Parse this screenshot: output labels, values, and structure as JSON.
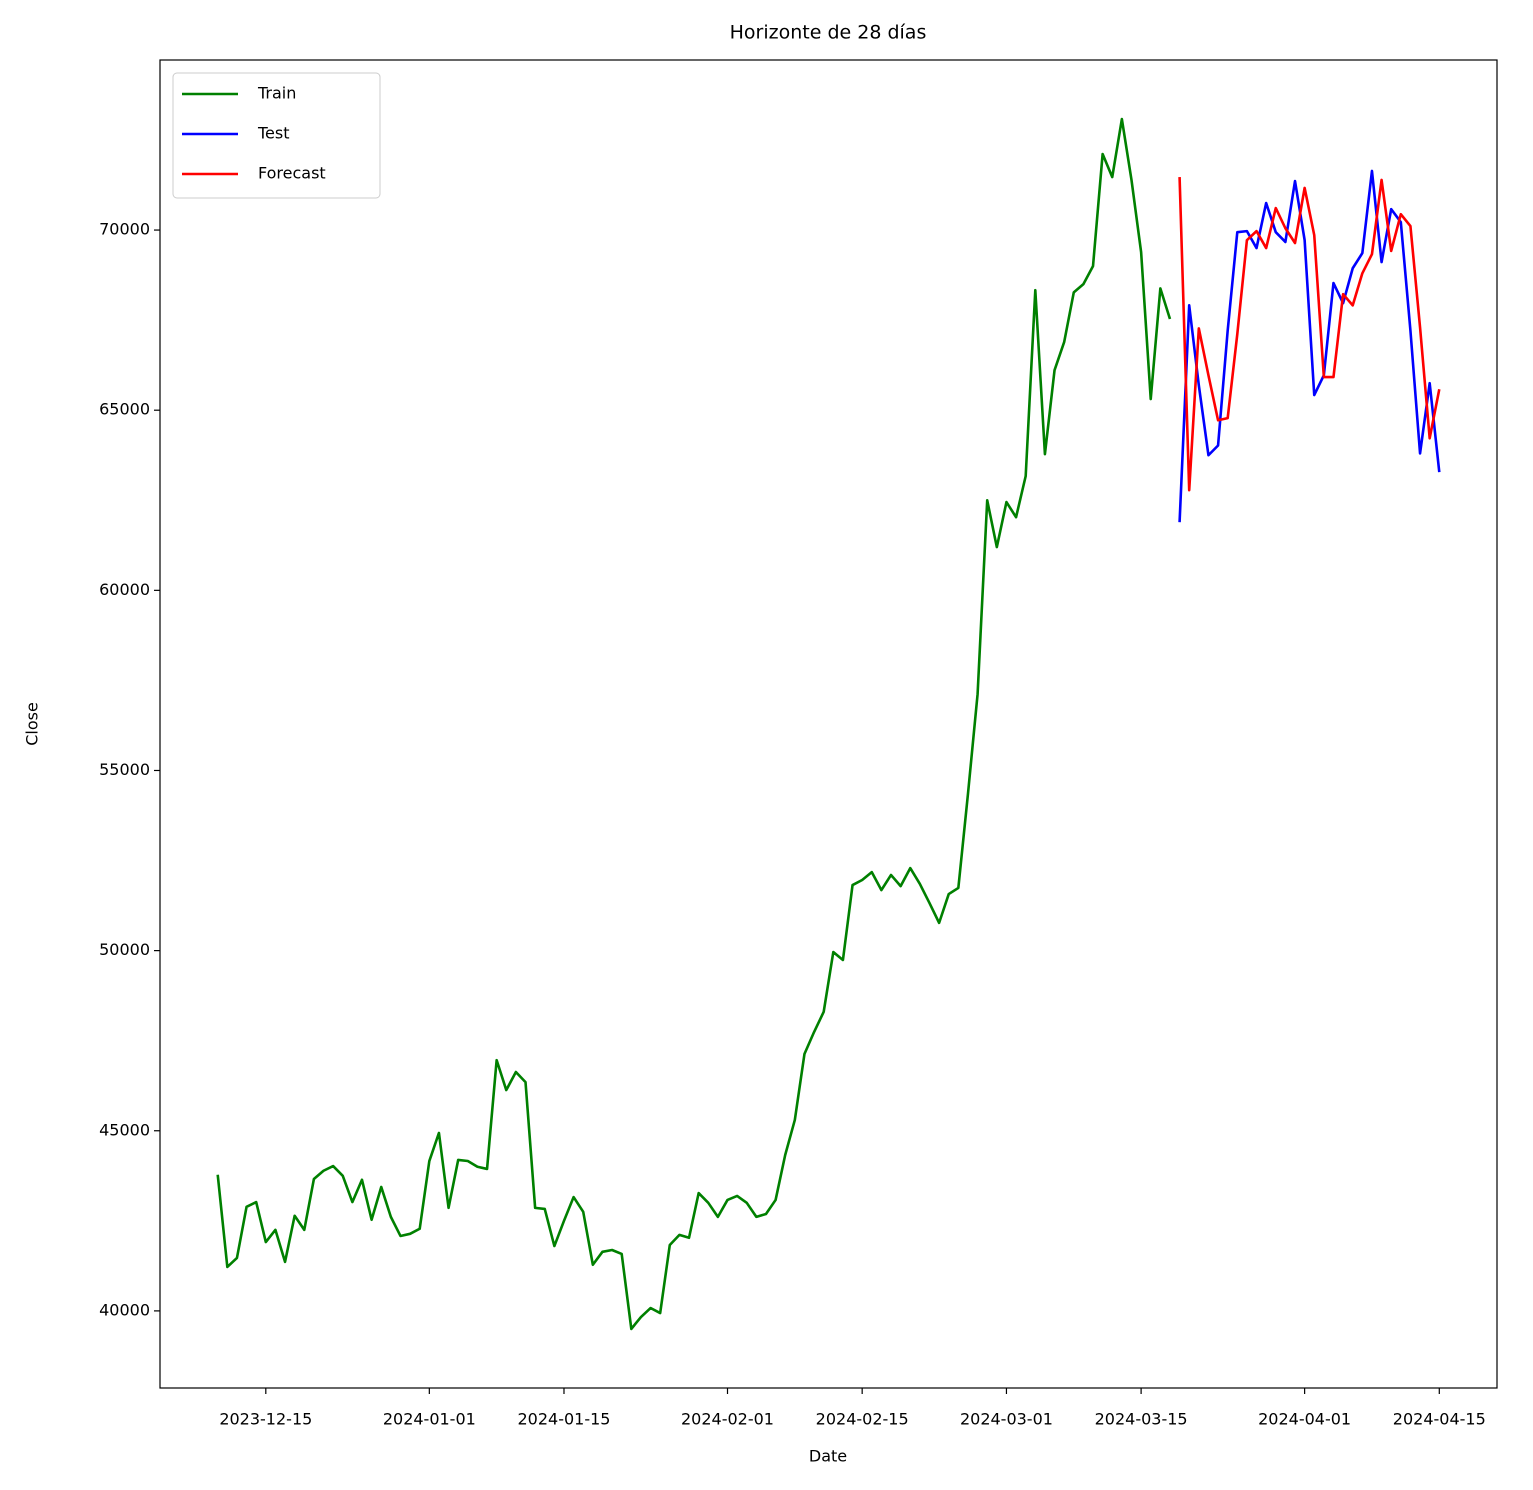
{
  "chart_data": {
    "type": "line",
    "title": "Horizonte de 28 días",
    "x_label": "Date",
    "y_label": "Close",
    "xlim": [
      "2023-12-04",
      "2024-04-21"
    ],
    "ylim": [
      37860,
      74720
    ],
    "xticks": [
      "2023-12-15",
      "2024-01-01",
      "2024-01-15",
      "2024-02-01",
      "2024-02-15",
      "2024-03-01",
      "2024-03-15",
      "2024-04-01",
      "2024-04-15"
    ],
    "yticks": [
      40000,
      45000,
      50000,
      55000,
      60000,
      65000,
      70000
    ],
    "legend": "upper left",
    "grid": false,
    "series": [
      {
        "name": "Train",
        "color": "#008000",
        "x": [
          "2023-12-10",
          "2023-12-11",
          "2023-12-12",
          "2023-12-13",
          "2023-12-14",
          "2023-12-15",
          "2023-12-16",
          "2023-12-17",
          "2023-12-18",
          "2023-12-19",
          "2023-12-20",
          "2023-12-21",
          "2023-12-22",
          "2023-12-23",
          "2023-12-24",
          "2023-12-25",
          "2023-12-26",
          "2023-12-27",
          "2023-12-28",
          "2023-12-29",
          "2023-12-30",
          "2023-12-31",
          "2024-01-01",
          "2024-01-02",
          "2024-01-03",
          "2024-01-04",
          "2024-01-05",
          "2024-01-06",
          "2024-01-07",
          "2024-01-08",
          "2024-01-09",
          "2024-01-10",
          "2024-01-11",
          "2024-01-12",
          "2024-01-13",
          "2024-01-14",
          "2024-01-15",
          "2024-01-16",
          "2024-01-17",
          "2024-01-18",
          "2024-01-19",
          "2024-01-20",
          "2024-01-21",
          "2024-01-22",
          "2024-01-23",
          "2024-01-24",
          "2024-01-25",
          "2024-01-26",
          "2024-01-27",
          "2024-01-28",
          "2024-01-29",
          "2024-01-30",
          "2024-01-31",
          "2024-02-01",
          "2024-02-02",
          "2024-02-03",
          "2024-02-04",
          "2024-02-05",
          "2024-02-06",
          "2024-02-07",
          "2024-02-08",
          "2024-02-09",
          "2024-02-10",
          "2024-02-11",
          "2024-02-12",
          "2024-02-13",
          "2024-02-14",
          "2024-02-15",
          "2024-02-16",
          "2024-02-17",
          "2024-02-18",
          "2024-02-19",
          "2024-02-20",
          "2024-02-21",
          "2024-02-22",
          "2024-02-23",
          "2024-02-24",
          "2024-02-25",
          "2024-02-26",
          "2024-02-27",
          "2024-02-28",
          "2024-02-29",
          "2024-03-01",
          "2024-03-02",
          "2024-03-03",
          "2024-03-04",
          "2024-03-05",
          "2024-03-06",
          "2024-03-07",
          "2024-03-08",
          "2024-03-09",
          "2024-03-10",
          "2024-03-11",
          "2024-03-12",
          "2024-03-13",
          "2024-03-14",
          "2024-03-15",
          "2024-03-16",
          "2024-03-17",
          "2024-03-18"
        ],
        "values": [
          43780,
          41220,
          41470,
          42890,
          43020,
          41910,
          42250,
          41360,
          42640,
          42250,
          43660,
          43890,
          44020,
          43750,
          43020,
          43640,
          42530,
          43440,
          42610,
          42080,
          42140,
          42280,
          44160,
          44940,
          42860,
          44190,
          44160,
          44000,
          43940,
          46960,
          46130,
          46630,
          46350,
          42860,
          42830,
          41800,
          42500,
          43160,
          42750,
          41280,
          41640,
          41690,
          41580,
          39500,
          39830,
          40080,
          39940,
          41830,
          42110,
          42030,
          43270,
          43000,
          42610,
          43080,
          43190,
          43000,
          42610,
          42690,
          43080,
          44330,
          45300,
          47130,
          47740,
          48300,
          49960,
          49740,
          51820,
          51960,
          52180,
          51680,
          52100,
          51790,
          52290,
          51850,
          51320,
          50770,
          51570,
          51740,
          54350,
          57120,
          62500,
          61200,
          62450,
          62030,
          63170,
          68330,
          63780,
          66110,
          66890,
          68270,
          68500,
          69000,
          72110,
          71470,
          73080,
          71390,
          69390,
          65310,
          68380,
          67530
        ]
      },
      {
        "name": "Test",
        "color": "#0000ff",
        "x": [
          "2024-03-19",
          "2024-03-20",
          "2024-03-21",
          "2024-03-22",
          "2024-03-23",
          "2024-03-24",
          "2024-03-25",
          "2024-03-26",
          "2024-03-27",
          "2024-03-28",
          "2024-03-29",
          "2024-03-30",
          "2024-03-31",
          "2024-04-01",
          "2024-04-02",
          "2024-04-03",
          "2024-04-04",
          "2024-04-05",
          "2024-04-06",
          "2024-04-07",
          "2024-04-08",
          "2024-04-09",
          "2024-04-10",
          "2024-04-11",
          "2024-04-12",
          "2024-04-13",
          "2024-04-14",
          "2024-04-15"
        ],
        "values": [
          61890,
          67910,
          65690,
          63750,
          64020,
          67210,
          69940,
          69970,
          69500,
          70750,
          69940,
          69670,
          71360,
          69720,
          65420,
          65970,
          68530,
          67970,
          68940,
          69360,
          71640,
          69110,
          70580,
          70220,
          67210,
          63800,
          65750,
          63280
        ]
      },
      {
        "name": "Forecast",
        "color": "#ff0000",
        "x": [
          "2024-03-19",
          "2024-03-20",
          "2024-03-21",
          "2024-03-22",
          "2024-03-23",
          "2024-03-24",
          "2024-03-25",
          "2024-03-26",
          "2024-03-27",
          "2024-03-28",
          "2024-03-29",
          "2024-03-30",
          "2024-03-31",
          "2024-04-01",
          "2024-04-02",
          "2024-04-03",
          "2024-04-04",
          "2024-04-05",
          "2024-04-06",
          "2024-04-07",
          "2024-04-08",
          "2024-04-09",
          "2024-04-10",
          "2024-04-11",
          "2024-04-12",
          "2024-04-13",
          "2024-04-14",
          "2024-04-15"
        ],
        "values": [
          71470,
          62780,
          67270,
          65970,
          64720,
          64780,
          67110,
          69720,
          69970,
          69500,
          70610,
          70050,
          69640,
          71170,
          69860,
          65920,
          65920,
          68220,
          67910,
          68800,
          69330,
          71390,
          69420,
          70440,
          70110,
          67300,
          64220,
          65580
        ]
      }
    ]
  }
}
